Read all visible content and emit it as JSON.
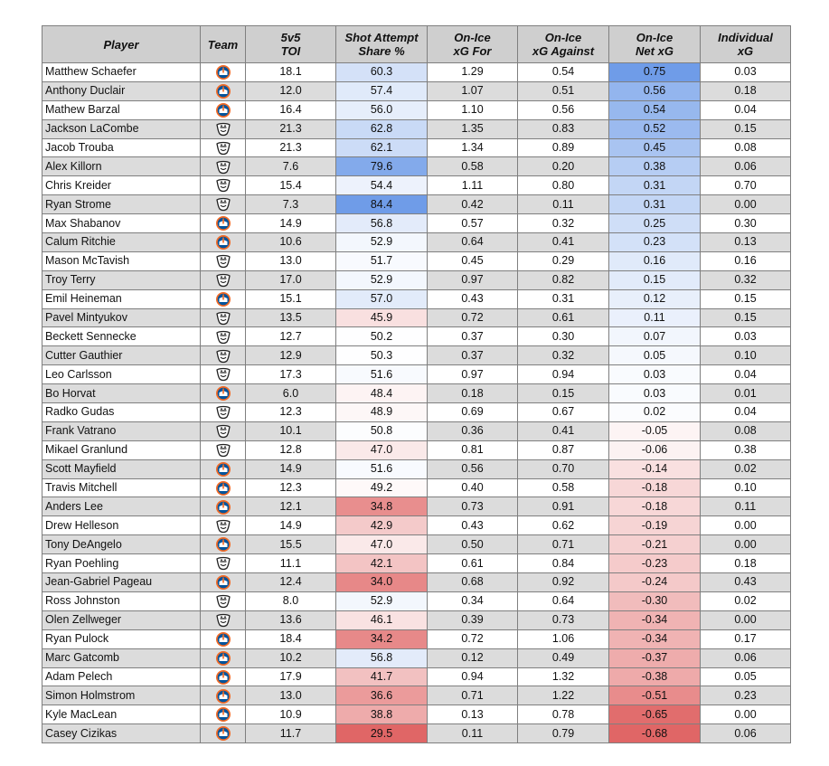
{
  "chart_data": {
    "type": "table",
    "columns": [
      "Player",
      "Team",
      "5v5\nTOI",
      "Shot Attempt\nShare %",
      "On-Ice\nxG For",
      "On-Ice\nxG Against",
      "On-Ice\nNet xG",
      "Individual\nxG"
    ],
    "team_icons": {
      "NYI": "islanders-logo-icon",
      "ANA": "ducks-logo-icon"
    },
    "rows": [
      [
        "Matthew Schaefer",
        "NYI",
        "18.1",
        "60.3",
        "1.29",
        "0.54",
        "0.75",
        "0.03"
      ],
      [
        "Anthony Duclair",
        "NYI",
        "12.0",
        "57.4",
        "1.07",
        "0.51",
        "0.56",
        "0.18"
      ],
      [
        "Mathew Barzal",
        "NYI",
        "16.4",
        "56.0",
        "1.10",
        "0.56",
        "0.54",
        "0.04"
      ],
      [
        "Jackson LaCombe",
        "ANA",
        "21.3",
        "62.8",
        "1.35",
        "0.83",
        "0.52",
        "0.15"
      ],
      [
        "Jacob Trouba",
        "ANA",
        "21.3",
        "62.1",
        "1.34",
        "0.89",
        "0.45",
        "0.08"
      ],
      [
        "Alex Killorn",
        "ANA",
        "7.6",
        "79.6",
        "0.58",
        "0.20",
        "0.38",
        "0.06"
      ],
      [
        "Chris Kreider",
        "ANA",
        "15.4",
        "54.4",
        "1.11",
        "0.80",
        "0.31",
        "0.70"
      ],
      [
        "Ryan Strome",
        "ANA",
        "7.3",
        "84.4",
        "0.42",
        "0.11",
        "0.31",
        "0.00"
      ],
      [
        "Max Shabanov",
        "NYI",
        "14.9",
        "56.8",
        "0.57",
        "0.32",
        "0.25",
        "0.30"
      ],
      [
        "Calum Ritchie",
        "NYI",
        "10.6",
        "52.9",
        "0.64",
        "0.41",
        "0.23",
        "0.13"
      ],
      [
        "Mason McTavish",
        "ANA",
        "13.0",
        "51.7",
        "0.45",
        "0.29",
        "0.16",
        "0.16"
      ],
      [
        "Troy Terry",
        "ANA",
        "17.0",
        "52.9",
        "0.97",
        "0.82",
        "0.15",
        "0.32"
      ],
      [
        "Emil Heineman",
        "NYI",
        "15.1",
        "57.0",
        "0.43",
        "0.31",
        "0.12",
        "0.15"
      ],
      [
        "Pavel Mintyukov",
        "ANA",
        "13.5",
        "45.9",
        "0.72",
        "0.61",
        "0.11",
        "0.15"
      ],
      [
        "Beckett Sennecke",
        "ANA",
        "12.7",
        "50.2",
        "0.37",
        "0.30",
        "0.07",
        "0.03"
      ],
      [
        "Cutter Gauthier",
        "ANA",
        "12.9",
        "50.3",
        "0.37",
        "0.32",
        "0.05",
        "0.10"
      ],
      [
        "Leo Carlsson",
        "ANA",
        "17.3",
        "51.6",
        "0.97",
        "0.94",
        "0.03",
        "0.04"
      ],
      [
        "Bo Horvat",
        "NYI",
        "6.0",
        "48.4",
        "0.18",
        "0.15",
        "0.03",
        "0.01"
      ],
      [
        "Radko Gudas",
        "ANA",
        "12.3",
        "48.9",
        "0.69",
        "0.67",
        "0.02",
        "0.04"
      ],
      [
        "Frank Vatrano",
        "ANA",
        "10.1",
        "50.8",
        "0.36",
        "0.41",
        "-0.05",
        "0.08"
      ],
      [
        "Mikael Granlund",
        "ANA",
        "12.8",
        "47.0",
        "0.81",
        "0.87",
        "-0.06",
        "0.38"
      ],
      [
        "Scott Mayfield",
        "NYI",
        "14.9",
        "51.6",
        "0.56",
        "0.70",
        "-0.14",
        "0.02"
      ],
      [
        "Travis Mitchell",
        "NYI",
        "12.3",
        "49.2",
        "0.40",
        "0.58",
        "-0.18",
        "0.10"
      ],
      [
        "Anders Lee",
        "NYI",
        "12.1",
        "34.8",
        "0.73",
        "0.91",
        "-0.18",
        "0.11"
      ],
      [
        "Drew Helleson",
        "ANA",
        "14.9",
        "42.9",
        "0.43",
        "0.62",
        "-0.19",
        "0.00"
      ],
      [
        "Tony DeAngelo",
        "NYI",
        "15.5",
        "47.0",
        "0.50",
        "0.71",
        "-0.21",
        "0.00"
      ],
      [
        "Ryan Poehling",
        "ANA",
        "11.1",
        "42.1",
        "0.61",
        "0.84",
        "-0.23",
        "0.18"
      ],
      [
        "Jean-Gabriel Pageau",
        "NYI",
        "12.4",
        "34.0",
        "0.68",
        "0.92",
        "-0.24",
        "0.43"
      ],
      [
        "Ross Johnston",
        "ANA",
        "8.0",
        "52.9",
        "0.34",
        "0.64",
        "-0.30",
        "0.02"
      ],
      [
        "Olen Zellweger",
        "ANA",
        "13.6",
        "46.1",
        "0.39",
        "0.73",
        "-0.34",
        "0.00"
      ],
      [
        "Ryan Pulock",
        "NYI",
        "18.4",
        "34.2",
        "0.72",
        "1.06",
        "-0.34",
        "0.17"
      ],
      [
        "Marc Gatcomb",
        "NYI",
        "10.2",
        "56.8",
        "0.12",
        "0.49",
        "-0.37",
        "0.06"
      ],
      [
        "Adam Pelech",
        "NYI",
        "17.9",
        "41.7",
        "0.94",
        "1.32",
        "-0.38",
        "0.05"
      ],
      [
        "Simon Holmstrom",
        "NYI",
        "13.0",
        "36.6",
        "0.71",
        "1.22",
        "-0.51",
        "0.23"
      ],
      [
        "Kyle MacLean",
        "NYI",
        "10.9",
        "38.8",
        "0.13",
        "0.78",
        "-0.65",
        "0.00"
      ],
      [
        "Casey Cizikas",
        "NYI",
        "11.7",
        "29.5",
        "0.11",
        "0.79",
        "-0.68",
        "0.06"
      ]
    ],
    "heatmap_columns": [
      3,
      6
    ],
    "colors": {
      "positive": "#6f9ce8",
      "neutral": "#ffffff",
      "negative": "#e06666",
      "header": "#cfcfcf",
      "row_alt": "#dcdcdc"
    }
  }
}
